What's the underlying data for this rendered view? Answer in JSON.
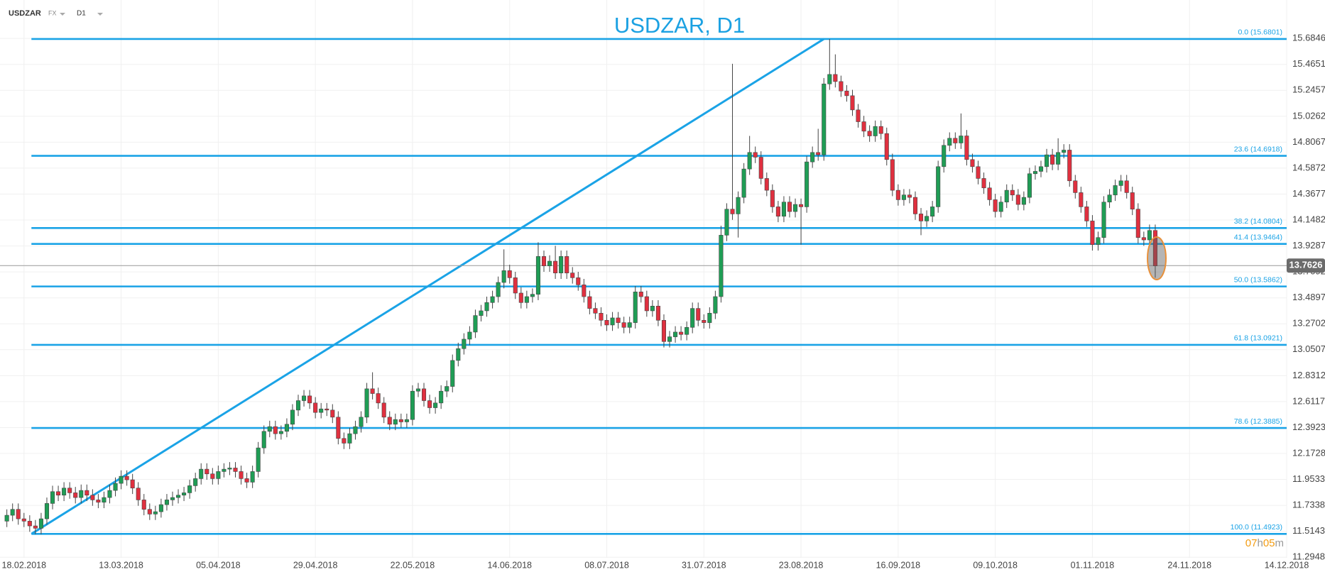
{
  "toolbar": {
    "symbol": "USDZAR",
    "market": "FX",
    "timeframe": "D1"
  },
  "chart_data": {
    "type": "candlestick",
    "title": "USDZAR, D1",
    "xlim": [
      -1.2,
      224
    ],
    "xticks": [
      {
        "value": 3,
        "label": "18.02.2018"
      },
      {
        "value": 20,
        "label": "13.03.2018"
      },
      {
        "value": 37,
        "label": "05.04.2018"
      },
      {
        "value": 54,
        "label": "29.04.2018"
      },
      {
        "value": 71,
        "label": "22.05.2018"
      },
      {
        "value": 88,
        "label": "14.06.2018"
      },
      {
        "value": 105,
        "label": "08.07.2018"
      },
      {
        "value": 122,
        "label": "31.07.2018"
      },
      {
        "value": 139,
        "label": "23.08.2018"
      },
      {
        "value": 156,
        "label": "16.09.2018"
      },
      {
        "value": 173,
        "label": "09.10.2018"
      },
      {
        "value": 190,
        "label": "01.11.2018"
      },
      {
        "value": 207,
        "label": "24.11.2018"
      },
      {
        "value": 224,
        "label": "14.12.2018"
      }
    ],
    "ylim": [
      11.29,
      16.01
    ],
    "yticks": [
      15.6846,
      15.4651,
      15.2457,
      15.0262,
      14.8067,
      14.5872,
      14.3677,
      14.1482,
      13.9287,
      13.7092,
      13.4897,
      13.2702,
      13.0507,
      12.8312,
      12.6117,
      12.3923,
      12.1728,
      11.9533,
      11.7338,
      11.5143,
      11.2948
    ],
    "grid": true,
    "up_color": "#1f9d55",
    "down_color": "#e0303f",
    "open": [
      11.6,
      11.65,
      11.7,
      11.62,
      11.6,
      11.56,
      11.54,
      11.62,
      11.75,
      11.85,
      11.82,
      11.88,
      11.84,
      11.8,
      11.86,
      11.82,
      11.78,
      11.76,
      11.8,
      11.86,
      11.92,
      11.98,
      11.95,
      11.88,
      11.78,
      11.7,
      11.66,
      11.68,
      11.74,
      11.78,
      11.8,
      11.82,
      11.84,
      11.9,
      11.96,
      12.04,
      12.0,
      11.96,
      12.02,
      12.04,
      12.05,
      12.02,
      11.96,
      11.93,
      12.02,
      12.22,
      12.36,
      12.4,
      12.34,
      12.36,
      12.42,
      12.54,
      12.62,
      12.66,
      12.6,
      12.52,
      12.55,
      12.54,
      12.48,
      12.3,
      12.26,
      12.34,
      12.4,
      12.48,
      12.72,
      12.68,
      12.6,
      12.48,
      12.42,
      12.46,
      12.44,
      12.46,
      12.7,
      12.72,
      12.62,
      12.56,
      12.6,
      12.7,
      12.74,
      12.96,
      13.06,
      13.14,
      13.2,
      13.34,
      13.38,
      13.45,
      13.5,
      13.62,
      13.72,
      13.66,
      13.53,
      13.45,
      13.5,
      13.52,
      13.84,
      13.76,
      13.8,
      13.7,
      13.84,
      13.7,
      13.66,
      13.6,
      13.5,
      13.4,
      13.36,
      13.3,
      13.26,
      13.32,
      13.28,
      13.24,
      13.28,
      13.54,
      13.5,
      13.38,
      13.42,
      13.3,
      13.12,
      13.16,
      13.2,
      13.18,
      13.24,
      13.4,
      13.3,
      13.28,
      13.36,
      13.5,
      14.02,
      14.24,
      14.2,
      14.34,
      14.58,
      14.72,
      14.68,
      14.5,
      14.4,
      14.26,
      14.18,
      14.3,
      14.22,
      14.28,
      14.26,
      14.64,
      14.72,
      14.7,
      15.3,
      15.38,
      15.32,
      15.24,
      15.2,
      15.08,
      14.98,
      14.9,
      14.86,
      14.94,
      14.88,
      14.66,
      14.4,
      14.32,
      14.36,
      14.34,
      14.2,
      14.14,
      14.18,
      14.26,
      14.6,
      14.78,
      14.84,
      14.8,
      14.86,
      14.66,
      14.6,
      14.5,
      14.42,
      14.32,
      14.22,
      14.3,
      14.4,
      14.36,
      14.28,
      14.34,
      14.54,
      14.56,
      14.6,
      14.7,
      14.62,
      14.72,
      14.74,
      14.48,
      14.38,
      14.26,
      14.14,
      13.94,
      14.0,
      14.3,
      14.36,
      14.44,
      14.48,
      14.38,
      14.24,
      14.0,
      13.98,
      14.06
    ],
    "high": [
      11.7,
      11.75,
      11.75,
      11.67,
      11.65,
      11.61,
      11.67,
      11.8,
      11.9,
      11.9,
      11.93,
      11.93,
      11.89,
      11.91,
      11.91,
      11.87,
      11.83,
      11.85,
      11.91,
      11.97,
      12.03,
      12.03,
      12.0,
      11.93,
      11.83,
      11.75,
      11.73,
      11.79,
      11.83,
      11.85,
      11.87,
      11.89,
      11.95,
      12.01,
      12.09,
      12.09,
      12.05,
      12.07,
      12.09,
      12.1,
      12.1,
      12.07,
      12.01,
      12.07,
      12.27,
      12.41,
      12.45,
      12.45,
      12.41,
      12.47,
      12.59,
      12.67,
      12.71,
      12.71,
      12.65,
      12.6,
      12.6,
      12.59,
      12.53,
      12.35,
      12.39,
      12.45,
      12.53,
      12.77,
      12.86,
      12.73,
      12.65,
      12.53,
      12.51,
      12.51,
      12.51,
      12.75,
      12.77,
      12.77,
      12.67,
      12.65,
      12.75,
      12.79,
      13.01,
      13.11,
      13.19,
      13.25,
      13.39,
      13.43,
      13.5,
      13.55,
      13.67,
      13.9,
      13.77,
      13.71,
      13.58,
      13.55,
      13.57,
      13.96,
      13.89,
      13.85,
      13.93,
      13.89,
      13.89,
      13.75,
      13.71,
      13.65,
      13.55,
      13.45,
      13.41,
      13.35,
      13.37,
      13.37,
      13.33,
      13.33,
      13.59,
      13.59,
      13.55,
      13.47,
      13.47,
      13.35,
      13.21,
      13.25,
      13.25,
      13.29,
      13.45,
      13.45,
      13.35,
      13.41,
      13.55,
      14.1,
      14.29,
      15.47,
      14.39,
      14.63,
      14.86,
      14.77,
      14.73,
      14.55,
      14.45,
      14.31,
      14.35,
      14.35,
      14.33,
      14.33,
      14.69,
      14.77,
      14.92,
      15.35,
      15.68,
      15.55,
      15.37,
      15.29,
      15.25,
      15.13,
      15.03,
      14.95,
      14.99,
      14.99,
      14.93,
      14.71,
      14.45,
      14.41,
      14.41,
      14.39,
      14.25,
      14.23,
      14.31,
      14.65,
      14.83,
      14.89,
      14.89,
      15.05,
      14.91,
      14.71,
      14.65,
      14.55,
      14.47,
      14.37,
      14.35,
      14.45,
      14.45,
      14.41,
      14.39,
      14.59,
      14.61,
      14.65,
      14.75,
      14.75,
      14.84,
      14.79,
      14.79,
      14.53,
      14.43,
      14.31,
      14.19,
      14.05,
      14.35,
      14.41,
      14.49,
      14.53,
      14.53,
      14.43,
      14.29,
      14.05,
      14.11,
      14.11
    ],
    "low": [
      11.55,
      11.6,
      11.57,
      11.55,
      11.51,
      11.49,
      11.49,
      11.57,
      11.7,
      11.77,
      11.77,
      11.79,
      11.75,
      11.75,
      11.77,
      11.73,
      11.71,
      11.71,
      11.75,
      11.81,
      11.87,
      11.9,
      11.83,
      11.73,
      11.65,
      11.61,
      11.61,
      11.63,
      11.69,
      11.73,
      11.75,
      11.77,
      11.79,
      11.85,
      11.91,
      11.95,
      11.91,
      11.91,
      11.97,
      11.99,
      11.97,
      11.91,
      11.88,
      11.88,
      11.97,
      12.17,
      12.31,
      12.29,
      12.29,
      12.31,
      12.37,
      12.49,
      12.57,
      12.55,
      12.47,
      12.47,
      12.49,
      12.43,
      12.25,
      12.21,
      12.21,
      12.29,
      12.35,
      12.43,
      12.63,
      12.55,
      12.43,
      12.37,
      12.37,
      12.39,
      12.39,
      12.41,
      12.65,
      12.57,
      12.51,
      12.51,
      12.55,
      12.65,
      12.69,
      12.91,
      13.01,
      13.09,
      13.15,
      13.29,
      13.33,
      13.4,
      13.45,
      13.57,
      13.61,
      13.48,
      13.4,
      13.4,
      13.45,
      13.47,
      13.71,
      13.71,
      13.65,
      13.65,
      13.65,
      13.61,
      13.55,
      13.45,
      13.35,
      13.31,
      13.25,
      13.21,
      13.21,
      13.23,
      13.19,
      13.19,
      13.23,
      13.45,
      13.33,
      13.33,
      13.25,
      13.07,
      13.07,
      13.11,
      13.13,
      13.13,
      13.19,
      13.25,
      13.23,
      13.23,
      13.31,
      13.45,
      13.97,
      14.15,
      14.0,
      14.29,
      14.53,
      14.63,
      14.45,
      14.35,
      14.21,
      14.13,
      14.13,
      14.17,
      14.17,
      13.94,
      14.21,
      14.59,
      14.65,
      14.65,
      15.25,
      15.27,
      15.19,
      15.15,
      15.03,
      14.93,
      14.85,
      14.81,
      14.81,
      14.83,
      14.61,
      14.35,
      14.27,
      14.27,
      14.29,
      14.15,
      14.02,
      14.09,
      14.13,
      14.21,
      14.55,
      14.73,
      14.75,
      14.75,
      14.61,
      14.55,
      14.45,
      14.37,
      14.27,
      14.17,
      14.17,
      14.25,
      14.31,
      14.23,
      14.23,
      14.29,
      14.49,
      14.51,
      14.55,
      14.57,
      14.57,
      14.67,
      14.43,
      14.33,
      14.21,
      14.09,
      13.89,
      13.89,
      13.95,
      14.25,
      14.31,
      14.39,
      14.33,
      14.19,
      13.95,
      13.93,
      13.93,
      13.66
    ],
    "close": [
      11.65,
      11.7,
      11.62,
      11.6,
      11.56,
      11.54,
      11.62,
      11.75,
      11.85,
      11.82,
      11.88,
      11.84,
      11.8,
      11.86,
      11.82,
      11.78,
      11.76,
      11.8,
      11.86,
      11.92,
      11.98,
      11.95,
      11.88,
      11.78,
      11.7,
      11.66,
      11.68,
      11.74,
      11.78,
      11.8,
      11.82,
      11.84,
      11.9,
      11.96,
      12.04,
      12.0,
      11.96,
      12.02,
      12.04,
      12.05,
      12.02,
      11.96,
      11.93,
      12.02,
      12.22,
      12.36,
      12.4,
      12.34,
      12.36,
      12.42,
      12.54,
      12.62,
      12.66,
      12.6,
      12.52,
      12.55,
      12.54,
      12.48,
      12.3,
      12.26,
      12.34,
      12.4,
      12.48,
      12.72,
      12.68,
      12.6,
      12.48,
      12.42,
      12.46,
      12.44,
      12.46,
      12.7,
      12.72,
      12.62,
      12.56,
      12.6,
      12.7,
      12.74,
      12.96,
      13.06,
      13.14,
      13.2,
      13.34,
      13.38,
      13.45,
      13.5,
      13.62,
      13.72,
      13.66,
      13.53,
      13.45,
      13.5,
      13.52,
      13.84,
      13.76,
      13.8,
      13.7,
      13.84,
      13.7,
      13.66,
      13.6,
      13.5,
      13.4,
      13.36,
      13.3,
      13.26,
      13.32,
      13.28,
      13.24,
      13.28,
      13.54,
      13.5,
      13.38,
      13.42,
      13.3,
      13.12,
      13.16,
      13.2,
      13.18,
      13.24,
      13.4,
      13.3,
      13.28,
      13.36,
      13.5,
      14.02,
      14.24,
      14.2,
      14.34,
      14.58,
      14.72,
      14.68,
      14.5,
      14.4,
      14.26,
      14.18,
      14.3,
      14.22,
      14.28,
      14.26,
      14.64,
      14.72,
      14.7,
      15.3,
      15.38,
      15.32,
      15.24,
      15.2,
      15.08,
      14.98,
      14.9,
      14.86,
      14.94,
      14.88,
      14.66,
      14.4,
      14.32,
      14.36,
      14.34,
      14.2,
      14.14,
      14.18,
      14.26,
      14.6,
      14.78,
      14.84,
      14.8,
      14.86,
      14.66,
      14.6,
      14.5,
      14.42,
      14.32,
      14.22,
      14.3,
      14.4,
      14.36,
      14.28,
      14.34,
      14.54,
      14.56,
      14.6,
      14.7,
      14.62,
      14.72,
      14.74,
      14.48,
      14.38,
      14.26,
      14.14,
      13.94,
      14.0,
      14.3,
      14.36,
      14.44,
      14.48,
      14.38,
      14.24,
      14.0,
      13.98,
      14.06,
      13.76
    ],
    "fib_color": "#1aa3e6",
    "fib_levels": [
      {
        "value": 15.6801,
        "label": "0.0 (15.6801)"
      },
      {
        "value": 14.6918,
        "label": "23.6 (14.6918)"
      },
      {
        "value": 14.0804,
        "label": "38.2 (14.0804)"
      },
      {
        "value": 13.9464,
        "label": "41.4 (13.9464)"
      },
      {
        "value": 13.5862,
        "label": "50.0 (13.5862)"
      },
      {
        "value": 13.0921,
        "label": "61.8 (13.0921)"
      },
      {
        "value": 12.3885,
        "label": "78.6 (12.3885)"
      },
      {
        "value": 11.4923,
        "label": "100.0 (11.4923)"
      }
    ],
    "trendline": {
      "x": [
        4.3,
        143
      ],
      "y": [
        11.4923,
        15.6801
      ]
    },
    "current_price": 13.7626,
    "countdown": [
      "07",
      "h",
      "05",
      "m"
    ]
  }
}
